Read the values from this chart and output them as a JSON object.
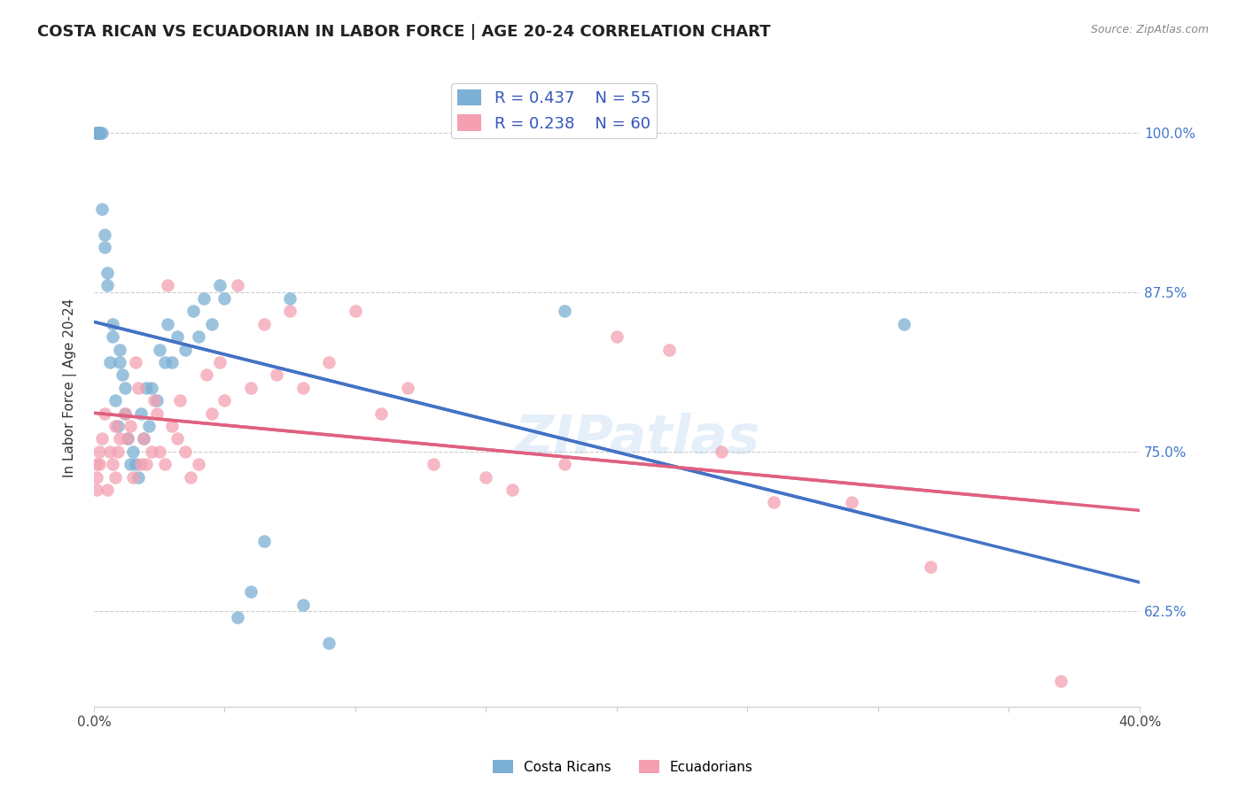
{
  "title": "COSTA RICAN VS ECUADORIAN IN LABOR FORCE | AGE 20-24 CORRELATION CHART",
  "source": "Source: ZipAtlas.com",
  "ylabel": "In Labor Force | Age 20-24",
  "xlim": [
    0.0,
    0.4
  ],
  "ylim": [
    0.55,
    1.05
  ],
  "xtick_positions": [
    0.0,
    0.05,
    0.1,
    0.15,
    0.2,
    0.25,
    0.3,
    0.35,
    0.4
  ],
  "xtick_labels": [
    "0.0%",
    "",
    "",
    "",
    "",
    "",
    "",
    "",
    "40.0%"
  ],
  "ytick_positions": [
    0.625,
    0.75,
    0.875,
    1.0
  ],
  "ytick_labels": [
    "62.5%",
    "75.0%",
    "87.5%",
    "100.0%"
  ],
  "blue_color": "#7BAFD4",
  "pink_color": "#F4A0B0",
  "blue_line_color": "#4472C4",
  "pink_line_color": "#E06080",
  "watermark": "ZIPatlas",
  "legend_blue_R": "R = 0.437",
  "legend_blue_N": "N = 55",
  "legend_pink_R": "R = 0.238",
  "legend_pink_N": "N = 60",
  "blue_x": [
    0.001,
    0.001,
    0.001,
    0.001,
    0.002,
    0.002,
    0.002,
    0.002,
    0.003,
    0.003,
    0.004,
    0.004,
    0.005,
    0.005,
    0.006,
    0.007,
    0.007,
    0.008,
    0.009,
    0.01,
    0.01,
    0.011,
    0.012,
    0.012,
    0.013,
    0.014,
    0.015,
    0.016,
    0.017,
    0.018,
    0.019,
    0.02,
    0.021,
    0.022,
    0.024,
    0.025,
    0.027,
    0.028,
    0.03,
    0.032,
    0.035,
    0.038,
    0.04,
    0.042,
    0.045,
    0.048,
    0.05,
    0.055,
    0.06,
    0.065,
    0.075,
    0.08,
    0.09,
    0.18,
    0.31
  ],
  "blue_y": [
    1.0,
    1.0,
    1.0,
    1.0,
    1.0,
    1.0,
    1.0,
    1.0,
    1.0,
    0.94,
    0.92,
    0.91,
    0.89,
    0.88,
    0.82,
    0.85,
    0.84,
    0.79,
    0.77,
    0.83,
    0.82,
    0.81,
    0.8,
    0.78,
    0.76,
    0.74,
    0.75,
    0.74,
    0.73,
    0.78,
    0.76,
    0.8,
    0.77,
    0.8,
    0.79,
    0.83,
    0.82,
    0.85,
    0.82,
    0.84,
    0.83,
    0.86,
    0.84,
    0.87,
    0.85,
    0.88,
    0.87,
    0.62,
    0.64,
    0.68,
    0.87,
    0.63,
    0.6,
    0.86,
    0.85
  ],
  "pink_x": [
    0.001,
    0.001,
    0.001,
    0.002,
    0.002,
    0.003,
    0.004,
    0.005,
    0.006,
    0.007,
    0.008,
    0.008,
    0.009,
    0.01,
    0.012,
    0.013,
    0.014,
    0.015,
    0.016,
    0.017,
    0.018,
    0.019,
    0.02,
    0.022,
    0.023,
    0.024,
    0.025,
    0.027,
    0.028,
    0.03,
    0.032,
    0.033,
    0.035,
    0.037,
    0.04,
    0.043,
    0.045,
    0.048,
    0.05,
    0.055,
    0.06,
    0.065,
    0.07,
    0.075,
    0.08,
    0.09,
    0.1,
    0.11,
    0.12,
    0.13,
    0.15,
    0.16,
    0.18,
    0.2,
    0.22,
    0.24,
    0.26,
    0.29,
    0.32,
    0.37
  ],
  "pink_y": [
    0.74,
    0.73,
    0.72,
    0.75,
    0.74,
    0.76,
    0.78,
    0.72,
    0.75,
    0.74,
    0.77,
    0.73,
    0.75,
    0.76,
    0.78,
    0.76,
    0.77,
    0.73,
    0.82,
    0.8,
    0.74,
    0.76,
    0.74,
    0.75,
    0.79,
    0.78,
    0.75,
    0.74,
    0.88,
    0.77,
    0.76,
    0.79,
    0.75,
    0.73,
    0.74,
    0.81,
    0.78,
    0.82,
    0.79,
    0.88,
    0.8,
    0.85,
    0.81,
    0.86,
    0.8,
    0.82,
    0.86,
    0.78,
    0.8,
    0.74,
    0.73,
    0.72,
    0.74,
    0.84,
    0.83,
    0.75,
    0.71,
    0.71,
    0.66,
    0.57
  ]
}
